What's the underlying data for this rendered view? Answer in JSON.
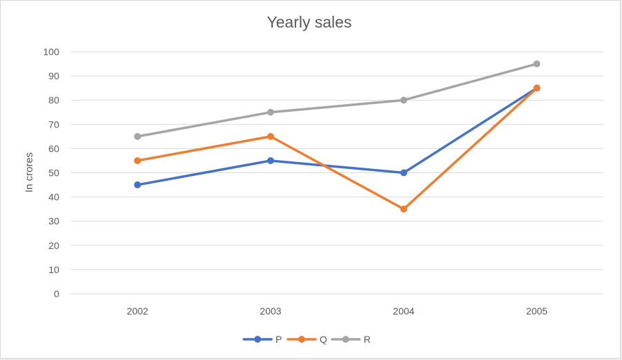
{
  "chart_data": {
    "type": "line",
    "title": "Yearly sales",
    "xlabel": "",
    "ylabel": "In crores",
    "categories": [
      "2002",
      "2003",
      "2004",
      "2005"
    ],
    "ylim": [
      0,
      100
    ],
    "yticks": [
      0,
      10,
      20,
      30,
      40,
      50,
      60,
      70,
      80,
      90,
      100
    ],
    "grid": true,
    "legend_position": "bottom",
    "series": [
      {
        "name": "P",
        "color": "#4472c4",
        "values": [
          45,
          55,
          50,
          85
        ]
      },
      {
        "name": "Q",
        "color": "#ed7d31",
        "values": [
          55,
          65,
          35,
          85
        ]
      },
      {
        "name": "R",
        "color": "#a5a5a5",
        "values": [
          65,
          75,
          80,
          95
        ]
      }
    ]
  }
}
